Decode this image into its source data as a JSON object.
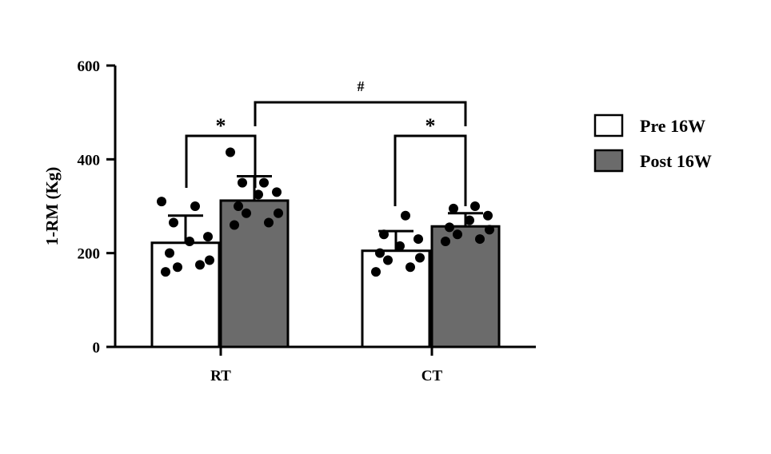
{
  "chart_data": {
    "type": "bar",
    "title": "",
    "xlabel": "",
    "ylabel": "1-RM (Kg)",
    "ylim": [
      0,
      600
    ],
    "yticks": [
      0,
      200,
      400,
      600
    ],
    "ytick_labels": [
      "0",
      "200",
      "400",
      "600"
    ],
    "categories": [
      "RT",
      "CT"
    ],
    "legend_position": "right",
    "series": [
      {
        "name": "Pre 16W",
        "color": "#ffffff",
        "values": [
          222,
          205
        ],
        "error": [
          58,
          42
        ],
        "points": [
          [
            160,
            175,
            170,
            185,
            200,
            225,
            235,
            265,
            300,
            310
          ],
          [
            160,
            170,
            185,
            190,
            200,
            215,
            230,
            240,
            280
          ]
        ]
      },
      {
        "name": "Post 16W",
        "color": "#6b6b6b",
        "values": [
          312,
          257
        ],
        "error": [
          52,
          28
        ],
        "points": [
          [
            260,
            265,
            285,
            285,
            300,
            325,
            330,
            350,
            350,
            415
          ],
          [
            225,
            230,
            240,
            250,
            255,
            270,
            280,
            295,
            300
          ]
        ]
      }
    ],
    "annotations": [
      {
        "label": "*",
        "between": "RT Pre 16W vs RT Post 16W"
      },
      {
        "label": "*",
        "between": "CT Pre 16W vs CT Post 16W"
      },
      {
        "label": "#",
        "between": "RT Post 16W vs CT Post 16W"
      }
    ]
  }
}
